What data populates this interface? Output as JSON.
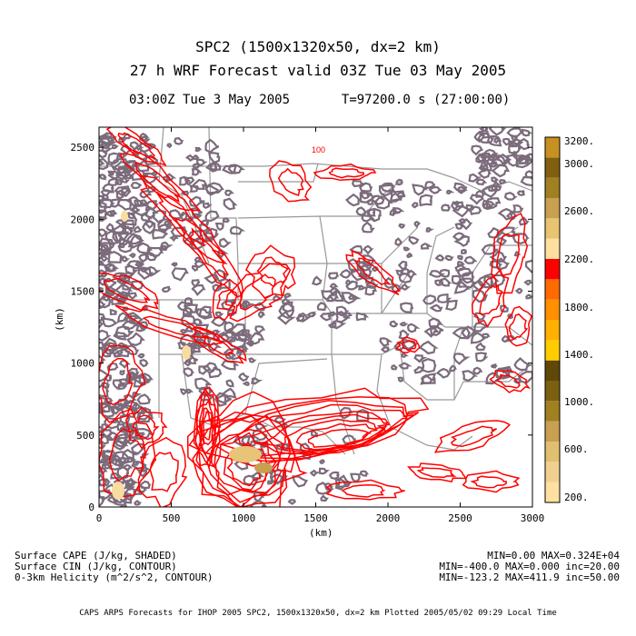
{
  "title": {
    "line1": "SPC2 (1500x1320x50, dx=2 km)",
    "line2": "27 h WRF Forecast valid 03Z Tue 03 May 2005"
  },
  "subtitle": {
    "time": "03:00Z Tue  3 May 2005",
    "elapsed": "T=97200.0 s (27:00:00)"
  },
  "axes": {
    "xlabel": "(km)",
    "ylabel": "(km)",
    "xticks": [
      "0",
      "500",
      "1000",
      "1500",
      "2000",
      "2500",
      "3000"
    ],
    "yticks": [
      "0",
      "500",
      "1000",
      "1500",
      "2000",
      "2500"
    ],
    "xlim": [
      0,
      3000
    ],
    "ylim": [
      0,
      2640
    ]
  },
  "colorbar": {
    "labels": [
      "3200.",
      "3000.",
      "2600.",
      "2200.",
      "1800.",
      "1400.",
      "1000.",
      "600.",
      "200."
    ],
    "colors": [
      "#f9dca0",
      "#e8c478",
      "#c8a050",
      "#a08020",
      "#7a6010",
      "#5a4808",
      "#ffcc00",
      "#ffb000",
      "#ff9000",
      "#ff6a00",
      "#ff3000",
      "#ff0000",
      "#ffe0a0",
      "#e8c070",
      "#c8a050",
      "#a08020",
      "#806010",
      "#604808"
    ]
  },
  "legend": {
    "var1": "Surface CAPE (J/kg, SHADED)",
    "var2": "Surface CIN (J/kg, CONTOUR)",
    "var3": "0-3km Helicity (m^2/s^2, CONTOUR)",
    "stat1": "MIN=0.00 MAX=0.324E+04",
    "stat2": "MIN=-400.0 MAX=0.000 inc=20.00",
    "stat3": "MIN=-123.2 MAX=411.9 inc=50.00"
  },
  "contour_label": "100",
  "footer": "CAPS ARPS Forecasts for IHOP 2005  SPC2, 1500x1320x50, dx=2 km  Plotted 2005/05/02 09:29 Local Time",
  "colors": {
    "cin": "#7b6b7b",
    "helicity": "#ff0000",
    "borders": "#999999"
  }
}
